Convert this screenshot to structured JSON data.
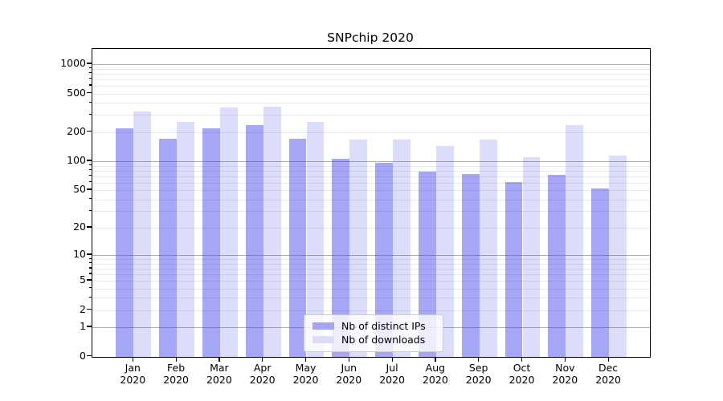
{
  "chart_data": {
    "type": "bar",
    "title": "SNPchip 2020",
    "categories": [
      "Jan",
      "Feb",
      "Mar",
      "Apr",
      "May",
      "Jun",
      "Jul",
      "Aug",
      "Sep",
      "Oct",
      "Nov",
      "Dec"
    ],
    "x_tick_line2": "2020",
    "series": [
      {
        "name": "Nb of distinct IPs",
        "legend_color": "#a6a6f0",
        "fill": "rgba(62,62,235,0.46)",
        "values": [
          220,
          172,
          218,
          236,
          170,
          106,
          97,
          78,
          73,
          61,
          72,
          52
        ]
      },
      {
        "name": "Nb of downloads",
        "legend_color": "#dddcf9",
        "fill": "rgba(62,62,235,0.18)",
        "values": [
          328,
          255,
          356,
          363,
          255,
          166,
          166,
          144,
          166,
          110,
          236,
          115
        ]
      }
    ],
    "yscale": "log10(x+1)",
    "ylim": [
      0,
      1400
    ],
    "y_ticks": [
      1000,
      500,
      200,
      100,
      50,
      20,
      10,
      5,
      2,
      1,
      0
    ],
    "y_major_gridlines": [
      1,
      10,
      100,
      1000
    ],
    "grid": true,
    "legend_position": "lower center",
    "major_grid_color": "#b0b0b0",
    "minor_grid_color": "#e8e8e8"
  }
}
